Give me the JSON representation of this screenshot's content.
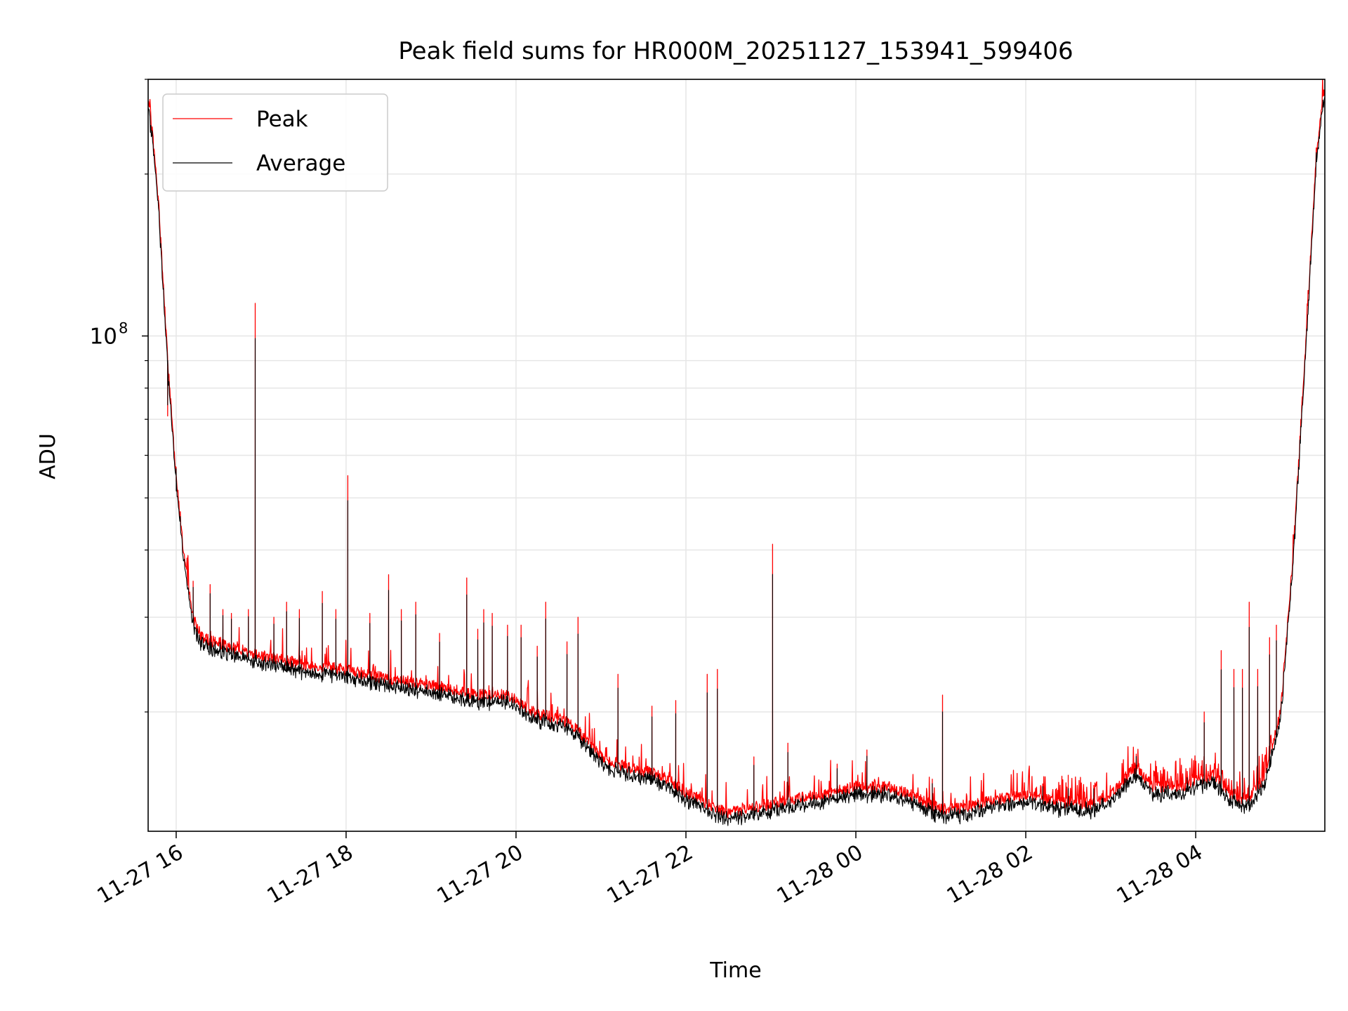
{
  "chart_data": {
    "type": "line",
    "title": "Peak field sums for HR000M_20251127_153941_599406",
    "xlabel": "Time",
    "ylabel": "ADU",
    "xlim": [
      15.67,
      29.52
    ],
    "ylim": [
      12000000,
      300000000
    ],
    "yscale": "log",
    "grid": true,
    "legend": {
      "position": "upper-left"
    },
    "x_ticks": [
      {
        "value": 16,
        "label": "11-27 16"
      },
      {
        "value": 18,
        "label": "11-27 18"
      },
      {
        "value": 20,
        "label": "11-27 20"
      },
      {
        "value": 22,
        "label": "11-27 22"
      },
      {
        "value": 24,
        "label": "11-28 00"
      },
      {
        "value": 26,
        "label": "11-28 02"
      },
      {
        "value": 28,
        "label": "11-28 04"
      }
    ],
    "y_major_ticks": [
      {
        "value": 100000000,
        "base": "10",
        "exp": "8"
      }
    ],
    "y_minor_ticks": [
      20000000,
      30000000,
      40000000,
      50000000,
      60000000,
      70000000,
      80000000,
      90000000,
      200000000,
      300000000
    ],
    "series": [
      {
        "name": "Peak",
        "color": "#ff0000",
        "baseline": [
          [
            15.67,
            270000000
          ],
          [
            15.72,
            240000000
          ],
          [
            15.8,
            170000000
          ],
          [
            15.9,
            90000000
          ],
          [
            16.0,
            55000000
          ],
          [
            16.1,
            38000000
          ],
          [
            16.2,
            30000000
          ],
          [
            16.3,
            27500000
          ],
          [
            16.6,
            26500000
          ],
          [
            17.0,
            25500000
          ],
          [
            17.5,
            24500000
          ],
          [
            18.0,
            24000000
          ],
          [
            18.5,
            23000000
          ],
          [
            19.0,
            22500000
          ],
          [
            19.5,
            21500000
          ],
          [
            19.9,
            21500000
          ],
          [
            20.2,
            20000000
          ],
          [
            20.6,
            19200000
          ],
          [
            20.8,
            18000000
          ],
          [
            21.0,
            16500000
          ],
          [
            21.3,
            15800000
          ],
          [
            21.7,
            15300000
          ],
          [
            22.0,
            14200000
          ],
          [
            22.3,
            13400000
          ],
          [
            22.5,
            13000000
          ],
          [
            22.7,
            13200000
          ],
          [
            23.0,
            13500000
          ],
          [
            23.5,
            14000000
          ],
          [
            24.0,
            14500000
          ],
          [
            24.4,
            14500000
          ],
          [
            24.7,
            13900000
          ],
          [
            25.0,
            13200000
          ],
          [
            25.3,
            13300000
          ],
          [
            25.6,
            13700000
          ],
          [
            26.0,
            14000000
          ],
          [
            26.4,
            13600000
          ],
          [
            26.8,
            13500000
          ],
          [
            27.0,
            14100000
          ],
          [
            27.3,
            15800000
          ],
          [
            27.5,
            14500000
          ],
          [
            27.9,
            14600000
          ],
          [
            28.2,
            15300000
          ],
          [
            28.4,
            14100000
          ],
          [
            28.6,
            13700000
          ],
          [
            28.8,
            15000000
          ],
          [
            29.0,
            20000000
          ],
          [
            29.15,
            40000000
          ],
          [
            29.3,
            100000000
          ],
          [
            29.42,
            220000000
          ],
          [
            29.52,
            290000000
          ]
        ],
        "spikes": [
          [
            15.9,
            71000000
          ],
          [
            16.0,
            57000000
          ],
          [
            16.2,
            35000000
          ],
          [
            16.4,
            34500000
          ],
          [
            16.55,
            31000000
          ],
          [
            16.65,
            30500000
          ],
          [
            16.85,
            31000000
          ],
          [
            16.93,
            115000000
          ],
          [
            17.15,
            30000000
          ],
          [
            17.3,
            32000000
          ],
          [
            17.45,
            31000000
          ],
          [
            17.72,
            33500000
          ],
          [
            17.88,
            31000000
          ],
          [
            18.02,
            55000000
          ],
          [
            18.28,
            30500000
          ],
          [
            18.5,
            36000000
          ],
          [
            18.65,
            31000000
          ],
          [
            18.82,
            32000000
          ],
          [
            19.1,
            28000000
          ],
          [
            19.42,
            35500000
          ],
          [
            19.55,
            28500000
          ],
          [
            19.62,
            31000000
          ],
          [
            19.72,
            30500000
          ],
          [
            19.9,
            29000000
          ],
          [
            20.06,
            29000000
          ],
          [
            20.25,
            26500000
          ],
          [
            20.35,
            32000000
          ],
          [
            20.6,
            27000000
          ],
          [
            20.73,
            30000000
          ],
          [
            21.2,
            23500000
          ],
          [
            21.6,
            20500000
          ],
          [
            21.88,
            21000000
          ],
          [
            22.25,
            23500000
          ],
          [
            22.37,
            24000000
          ],
          [
            22.8,
            16500000
          ],
          [
            23.02,
            41000000
          ],
          [
            23.2,
            17500000
          ],
          [
            23.78,
            16000000
          ],
          [
            24.13,
            17000000
          ],
          [
            24.9,
            15000000
          ],
          [
            25.02,
            21500000
          ],
          [
            26.2,
            14700000
          ],
          [
            26.5,
            14600000
          ],
          [
            26.8,
            14600000
          ],
          [
            27.3,
            16700000
          ],
          [
            27.9,
            15200000
          ],
          [
            28.1,
            20000000
          ],
          [
            28.3,
            26000000
          ],
          [
            28.45,
            24000000
          ],
          [
            28.55,
            24000000
          ],
          [
            28.63,
            32000000
          ],
          [
            28.73,
            24000000
          ],
          [
            28.87,
            27500000
          ],
          [
            28.95,
            29000000
          ]
        ]
      },
      {
        "name": "Average",
        "color": "#000000",
        "scale": 0.97,
        "spike_scale": 0.82
      }
    ]
  }
}
